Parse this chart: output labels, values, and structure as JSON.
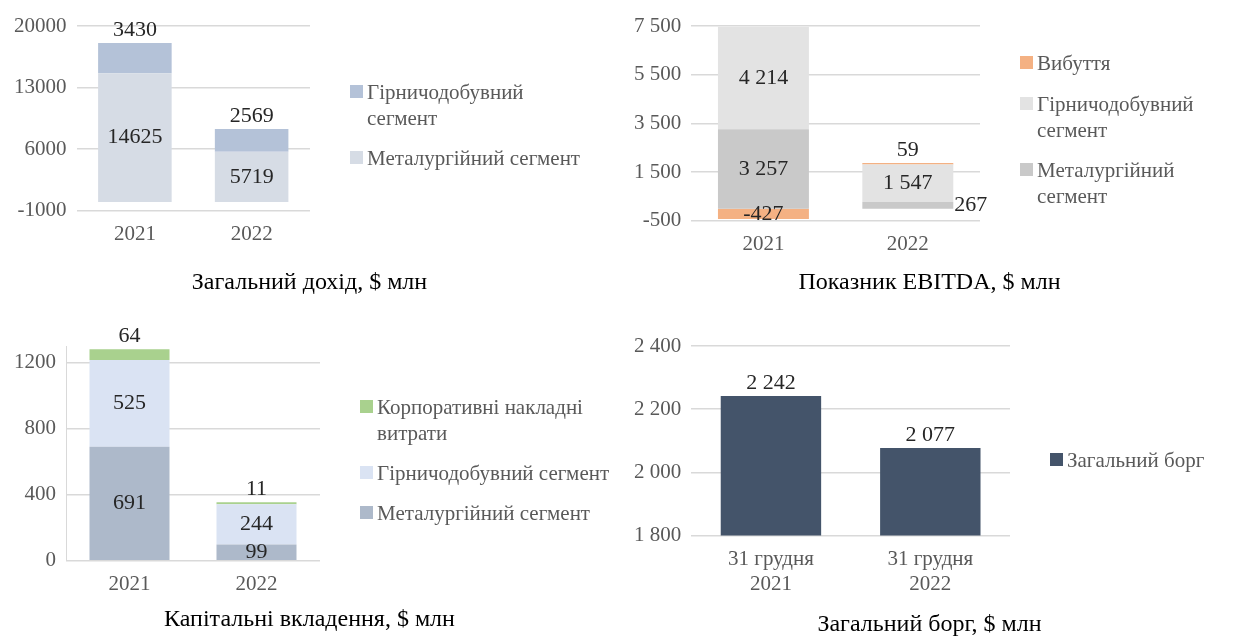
{
  "chart_data": [
    {
      "type": "bar",
      "stacked": true,
      "title": "Загальний дохід, $ млн",
      "categories": [
        "2021",
        "2022"
      ],
      "series": [
        {
          "name": "Металургійний сегмент",
          "color": "#d6dce5",
          "values": [
            14625,
            5719
          ]
        },
        {
          "name": "Гірничодобувний сегмент",
          "color": "#b4c2d8",
          "values": [
            3430,
            2569
          ]
        }
      ],
      "ylim": [
        -1000,
        20000
      ],
      "yticks": [
        -1000,
        6000,
        13000,
        20000
      ],
      "grid": "y",
      "legend": "right",
      "data_labels": true
    },
    {
      "type": "bar",
      "stacked": true,
      "title": "Показник EBITDA, $ млн",
      "categories": [
        "2021",
        "2022"
      ],
      "series": [
        {
          "name": "Металургійний сегмент",
          "color": "#c9c9c9",
          "values": [
            3257,
            267
          ],
          "value_labels": [
            "3 257",
            "267"
          ]
        },
        {
          "name": "Гірничодобувний сегмент",
          "color": "#e3e3e3",
          "values": [
            4214,
            1547
          ],
          "value_labels": [
            "4 214",
            "1 547"
          ]
        },
        {
          "name": "Вибуття",
          "color": "#f4b183",
          "values": [
            -427,
            59
          ],
          "value_labels": [
            "-427",
            "59"
          ]
        }
      ],
      "ylim": [
        -500,
        7500
      ],
      "yticks": [
        {
          "value": -500,
          "label": "-500"
        },
        {
          "value": 1500,
          "label": "1 500"
        },
        {
          "value": 3500,
          "label": "3 500"
        },
        {
          "value": 5500,
          "label": "5 500"
        },
        {
          "value": 7500,
          "label": "7 500"
        }
      ],
      "grid": "y",
      "legend": "right"
    },
    {
      "type": "bar",
      "stacked": true,
      "title": "Капітальні вкладення, $ млн",
      "categories": [
        "2021",
        "2022"
      ],
      "series": [
        {
          "name": "Металургійний сегмент",
          "color": "#adb9ca",
          "values": [
            691,
            99
          ]
        },
        {
          "name": "Гірничодобувний сегмент",
          "color": "#dae3f3",
          "values": [
            525,
            244
          ]
        },
        {
          "name": "Корпоративні накладні витрати",
          "color": "#a9d18e",
          "values": [
            64,
            11
          ]
        }
      ],
      "ylim": [
        0,
        1300
      ],
      "yticks": [
        0,
        400,
        800,
        1200
      ],
      "grid": "y",
      "legend": "right",
      "data_labels": true
    },
    {
      "type": "bar",
      "title": "Загальний борг, $ млн",
      "categories": [
        "31 грудня 2021",
        "31 грудня 2022"
      ],
      "series": [
        {
          "name": "Загальний борг",
          "color": "#44546a",
          "values": [
            2242,
            2077
          ],
          "value_labels": [
            "2 242",
            "2 077"
          ]
        }
      ],
      "ylim": [
        1800,
        2400
      ],
      "yticks": [
        {
          "value": 1800,
          "label": "1 800"
        },
        {
          "value": 2000,
          "label": "2 000"
        },
        {
          "value": 2200,
          "label": "2 200"
        },
        {
          "value": 2400,
          "label": "2 400"
        }
      ],
      "grid": "y",
      "legend": "right"
    }
  ]
}
